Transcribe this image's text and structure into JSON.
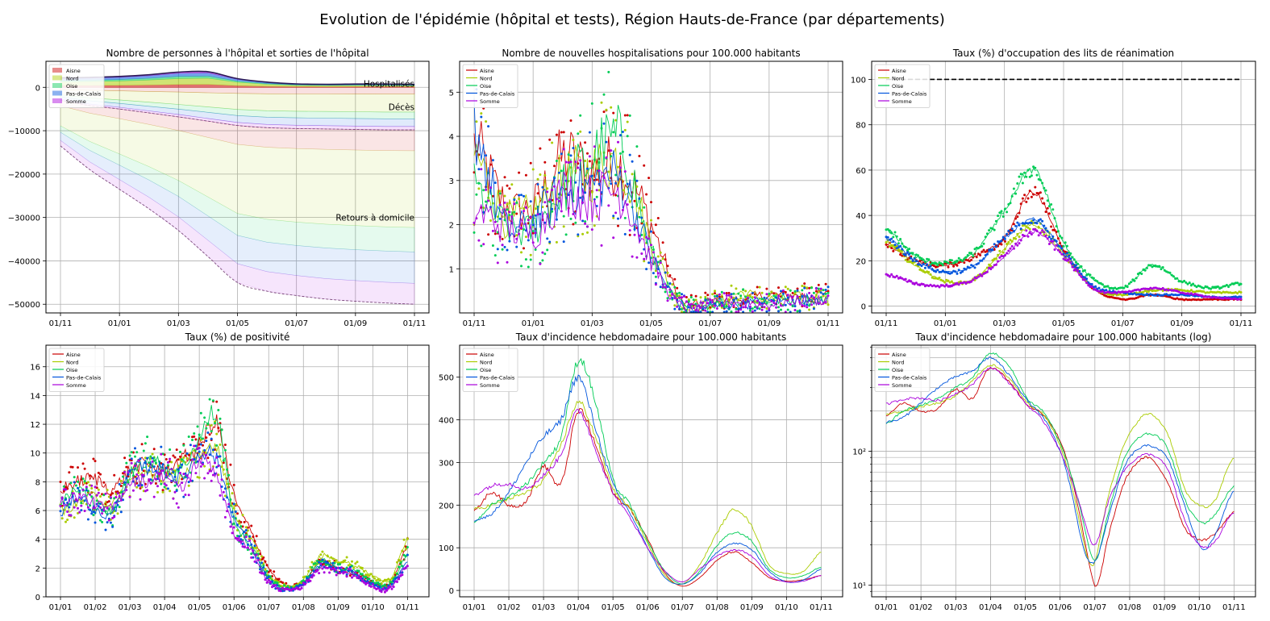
{
  "figure": {
    "title": "Evolution de l'épidémie (hôpital et tests), Région Hauts-de-France (par départements)"
  },
  "departments": [
    {
      "name": "Aisne",
      "color": "#cc0000"
    },
    {
      "name": "Nord",
      "color": "#aacc00"
    },
    {
      "name": "Oise",
      "color": "#00cc55"
    },
    {
      "name": "Pas-de-Calais",
      "color": "#0055dd"
    },
    {
      "name": "Somme",
      "color": "#aa00dd"
    }
  ],
  "chart_data": [
    {
      "id": "hosp",
      "type": "area",
      "title": "Nombre de personnes à l'hôpital et sorties de l'hôpital",
      "x_ticks": [
        "01/11",
        "01/01",
        "01/03",
        "01/05",
        "01/07",
        "01/09",
        "01/11"
      ],
      "x_range": [
        0,
        12
      ],
      "ylim": [
        -52000,
        6000
      ],
      "y_ticks": [
        0,
        -10000,
        -20000,
        -30000,
        -40000,
        -50000
      ],
      "y_tick_labels": [
        "0",
        "−10000",
        "−20000",
        "−30000",
        "−40000",
        "−50000"
      ],
      "legend": [
        "Aisne",
        "Nord",
        "Oise",
        "Pas-de-Calais",
        "Somme"
      ],
      "legend_position": "top-left",
      "grid": true,
      "annotations": [
        "Hospitalisés",
        "Décès",
        "Retours à domicile"
      ],
      "x": [
        0,
        1,
        2,
        3,
        4,
        5,
        6,
        7,
        8,
        9,
        10,
        11,
        12
      ],
      "hospitalises_total": [
        2200,
        2300,
        2500,
        2900,
        3500,
        3600,
        2000,
        1200,
        800,
        700,
        750,
        750,
        700
      ],
      "deces_total": [
        -3000,
        -4200,
        -5000,
        -5900,
        -6800,
        -7800,
        -8800,
        -9300,
        -9500,
        -9600,
        -9700,
        -9800,
        -9800
      ],
      "retours_total": [
        -13500,
        -19000,
        -23500,
        -28000,
        -33000,
        -39000,
        -45000,
        -47000,
        -48000,
        -48800,
        -49300,
        -49700,
        -50000
      ]
    },
    {
      "id": "new_hosp",
      "type": "line",
      "title": "Nombre de nouvelles hospitalisations pour 100.000 habitants",
      "x_ticks": [
        "01/11",
        "01/01",
        "01/03",
        "01/05",
        "01/07",
        "01/09",
        "01/11"
      ],
      "x_range": [
        0,
        12
      ],
      "ylim": [
        0,
        5.7
      ],
      "y_ticks": [
        1,
        2,
        3,
        4,
        5
      ],
      "y_tick_labels": [
        "1",
        "2",
        "3",
        "4",
        "5"
      ],
      "legend": [
        "Aisne",
        "Nord",
        "Oise",
        "Pas-de-Calais",
        "Somme"
      ],
      "legend_position": "top-left",
      "grid": true,
      "x": [
        0,
        1,
        2,
        3,
        4,
        5,
        6,
        7,
        8,
        9,
        10,
        11,
        12
      ],
      "series": [
        {
          "name": "Aisne",
          "values": [
            3.8,
            2.5,
            2.4,
            3.5,
            3.2,
            3.3,
            2.0,
            0.3,
            0.25,
            0.3,
            0.4,
            0.4,
            0.4
          ]
        },
        {
          "name": "Nord",
          "values": [
            3.6,
            2.2,
            2.3,
            3.0,
            3.2,
            3.4,
            1.6,
            0.2,
            0.2,
            0.45,
            0.3,
            0.35,
            0.3
          ]
        },
        {
          "name": "Oise",
          "values": [
            2.8,
            2.0,
            1.9,
            2.8,
            3.5,
            3.8,
            1.4,
            0.2,
            0.2,
            0.3,
            0.3,
            0.3,
            0.3
          ]
        },
        {
          "name": "Pas-de-Calais",
          "values": [
            4.3,
            2.0,
            2.1,
            2.7,
            2.9,
            3.0,
            1.3,
            0.2,
            0.15,
            0.2,
            0.25,
            0.3,
            0.35
          ]
        },
        {
          "name": "Somme",
          "values": [
            2.3,
            2.0,
            1.8,
            2.7,
            2.6,
            2.7,
            1.2,
            0.15,
            0.2,
            0.25,
            0.2,
            0.3,
            0.3
          ]
        }
      ]
    },
    {
      "id": "rea",
      "type": "line",
      "title": "Taux (%) d'occupation des lits de réanimation",
      "x_ticks": [
        "01/11",
        "01/01",
        "01/03",
        "01/05",
        "01/07",
        "01/09",
        "01/11"
      ],
      "x_range": [
        0,
        12
      ],
      "ylim": [
        -3,
        108
      ],
      "y_ticks": [
        0,
        20,
        40,
        60,
        80,
        100
      ],
      "y_tick_labels": [
        "0",
        "20",
        "40",
        "60",
        "80",
        "100"
      ],
      "legend": [
        "Aisne",
        "Nord",
        "Oise",
        "Pas-de-Calais",
        "Somme"
      ],
      "legend_position": "top-left",
      "grid": true,
      "reference_line": 100,
      "x": [
        0,
        1,
        2,
        3,
        4,
        5,
        6,
        7,
        8,
        9,
        10,
        11,
        12
      ],
      "series": [
        {
          "name": "Aisne",
          "values": [
            27,
            20,
            18,
            22,
            30,
            50,
            25,
            8,
            3,
            5,
            3,
            3,
            3
          ]
        },
        {
          "name": "Nord",
          "values": [
            28,
            18,
            11,
            12,
            25,
            36,
            23,
            8,
            5,
            7,
            7,
            6,
            6
          ]
        },
        {
          "name": "Oise",
          "values": [
            34,
            22,
            19,
            24,
            42,
            60,
            28,
            12,
            8,
            18,
            11,
            8,
            10
          ]
        },
        {
          "name": "Pas-de-Calais",
          "values": [
            30,
            20,
            15,
            18,
            30,
            38,
            24,
            9,
            6,
            5,
            5,
            4,
            4
          ]
        },
        {
          "name": "Somme",
          "values": [
            14,
            10,
            9,
            12,
            22,
            33,
            22,
            8,
            6,
            8,
            6,
            4,
            3
          ]
        }
      ]
    },
    {
      "id": "posit",
      "type": "line",
      "title": "Taux (%) de positivité",
      "x_ticks": [
        "01/01",
        "01/02",
        "01/03",
        "01/04",
        "01/05",
        "01/06",
        "01/07",
        "01/08",
        "01/09",
        "01/10",
        "01/11"
      ],
      "x_range": [
        0,
        10.2
      ],
      "ylim": [
        0,
        17.5
      ],
      "y_ticks": [
        0,
        2,
        4,
        6,
        8,
        10,
        12,
        14,
        16
      ],
      "y_tick_labels": [
        "0",
        "2",
        "4",
        "6",
        "8",
        "10",
        "12",
        "14",
        "16"
      ],
      "legend": [
        "Aisne",
        "Nord",
        "Oise",
        "Pas-de-Calais",
        "Somme"
      ],
      "legend_position": "top-left",
      "grid": true,
      "x": [
        0,
        0.5,
        1,
        1.5,
        2,
        2.5,
        3,
        3.5,
        4,
        4.5,
        5,
        5.5,
        6,
        6.5,
        7,
        7.5,
        8,
        8.5,
        9,
        9.5,
        10
      ],
      "series": [
        {
          "name": "Aisne",
          "values": [
            7.5,
            8.0,
            8.2,
            7.5,
            8.8,
            9.2,
            8.8,
            9.5,
            10.5,
            12.0,
            7.0,
            4.5,
            2.0,
            0.8,
            1.0,
            2.5,
            2.0,
            1.5,
            1.0,
            0.9,
            3.5
          ]
        },
        {
          "name": "Nord",
          "values": [
            6.0,
            6.5,
            7.0,
            6.5,
            8.0,
            8.5,
            8.2,
            8.5,
            9.5,
            10.5,
            6.0,
            4.0,
            1.5,
            0.7,
            1.2,
            2.8,
            2.5,
            2.2,
            1.5,
            1.2,
            4.0
          ]
        },
        {
          "name": "Oise",
          "values": [
            6.5,
            7.5,
            6.5,
            6.0,
            8.5,
            9.5,
            9.0,
            9.0,
            11.0,
            12.5,
            5.5,
            3.5,
            1.4,
            0.6,
            1.0,
            2.5,
            2.0,
            1.8,
            1.0,
            0.9,
            3.0
          ]
        },
        {
          "name": "Pas-de-Calais",
          "values": [
            5.8,
            7.0,
            6.0,
            5.8,
            8.5,
            9.0,
            8.8,
            8.2,
            10.0,
            9.5,
            5.5,
            3.5,
            1.2,
            0.5,
            0.9,
            2.2,
            2.0,
            1.6,
            0.8,
            0.7,
            2.5
          ]
        },
        {
          "name": "Somme",
          "values": [
            6.5,
            7.0,
            6.5,
            6.2,
            8.0,
            8.0,
            8.5,
            7.5,
            9.5,
            8.5,
            4.5,
            3.2,
            1.0,
            0.5,
            0.8,
            2.0,
            1.8,
            1.5,
            0.7,
            0.6,
            2.2
          ]
        }
      ]
    },
    {
      "id": "incid",
      "type": "line",
      "title": "Taux d'incidence hebdomadaire pour 100.000 habitants",
      "x_ticks": [
        "01/01",
        "01/02",
        "01/03",
        "01/04",
        "01/05",
        "01/06",
        "01/07",
        "01/08",
        "01/09",
        "01/10",
        "01/11"
      ],
      "x_range": [
        0,
        10.2
      ],
      "ylim": [
        -15,
        575
      ],
      "y_ticks": [
        0,
        100,
        200,
        300,
        400,
        500
      ],
      "y_tick_labels": [
        "0",
        "100",
        "200",
        "300",
        "400",
        "500"
      ],
      "legend": [
        "Aisne",
        "Nord",
        "Oise",
        "Pas-de-Calais",
        "Somme"
      ],
      "legend_position": "top-left",
      "grid": true,
      "x": [
        0,
        0.5,
        1,
        1.5,
        2,
        2.5,
        3,
        3.5,
        4,
        4.5,
        5,
        5.5,
        6,
        6.5,
        7,
        7.5,
        8,
        8.5,
        9,
        9.5,
        10
      ],
      "series": [
        {
          "name": "Aisne",
          "values": [
            185,
            230,
            200,
            210,
            290,
            250,
            420,
            340,
            230,
            190,
            120,
            40,
            10,
            30,
            70,
            90,
            65,
            30,
            22,
            25,
            35
          ]
        },
        {
          "name": "Nord",
          "values": [
            190,
            200,
            215,
            230,
            260,
            340,
            440,
            360,
            240,
            190,
            110,
            35,
            15,
            60,
            135,
            190,
            150,
            60,
            40,
            45,
            90
          ]
        },
        {
          "name": "Oise",
          "values": [
            160,
            200,
            220,
            250,
            300,
            360,
            540,
            440,
            260,
            200,
            115,
            45,
            15,
            45,
            105,
            135,
            115,
            50,
            30,
            35,
            55
          ]
        },
        {
          "name": "Pas-de-Calais",
          "values": [
            165,
            180,
            230,
            300,
            360,
            400,
            500,
            380,
            250,
            180,
            100,
            30,
            15,
            40,
            90,
            110,
            95,
            45,
            20,
            25,
            50
          ]
        },
        {
          "name": "Somme",
          "values": [
            225,
            245,
            250,
            240,
            270,
            320,
            420,
            330,
            230,
            170,
            100,
            45,
            20,
            50,
            80,
            95,
            80,
            35,
            20,
            22,
            35
          ]
        }
      ]
    },
    {
      "id": "incid_log",
      "type": "line",
      "title": "Taux d'incidence hebdomadaire pour 100.000 habitants (log)",
      "x_ticks": [
        "01/01",
        "01/02",
        "01/03",
        "01/04",
        "01/05",
        "01/06",
        "01/07",
        "01/08",
        "01/09",
        "01/10",
        "01/11"
      ],
      "x_range": [
        0,
        10.2
      ],
      "ylim": [
        8.2,
        620
      ],
      "y_scale": "log",
      "y_ticks": [
        10,
        100
      ],
      "y_tick_labels": [
        "10¹",
        "10²"
      ],
      "legend": [
        "Aisne",
        "Nord",
        "Oise",
        "Pas-de-Calais",
        "Somme"
      ],
      "legend_position": "top-left",
      "grid": true,
      "x": [
        0,
        0.5,
        1,
        1.5,
        2,
        2.5,
        3,
        3.5,
        4,
        4.5,
        5,
        5.5,
        6,
        6.5,
        7,
        7.5,
        8,
        8.5,
        9,
        9.5,
        10
      ],
      "series": [
        {
          "name": "Aisne",
          "values": [
            185,
            230,
            200,
            210,
            290,
            250,
            420,
            340,
            230,
            190,
            120,
            40,
            10,
            30,
            70,
            90,
            65,
            30,
            22,
            25,
            35
          ]
        },
        {
          "name": "Nord",
          "values": [
            190,
            200,
            215,
            230,
            260,
            340,
            440,
            360,
            240,
            190,
            110,
            35,
            15,
            60,
            135,
            190,
            150,
            60,
            40,
            45,
            90
          ]
        },
        {
          "name": "Oise",
          "values": [
            160,
            200,
            220,
            250,
            300,
            360,
            540,
            440,
            260,
            200,
            115,
            45,
            15,
            45,
            105,
            135,
            115,
            50,
            30,
            35,
            55
          ]
        },
        {
          "name": "Pas-de-Calais",
          "values": [
            165,
            180,
            230,
            300,
            360,
            400,
            500,
            380,
            250,
            180,
            100,
            30,
            15,
            40,
            90,
            110,
            95,
            45,
            20,
            25,
            50
          ]
        },
        {
          "name": "Somme",
          "values": [
            225,
            245,
            250,
            240,
            270,
            320,
            420,
            330,
            230,
            170,
            100,
            45,
            20,
            50,
            80,
            95,
            80,
            35,
            20,
            22,
            35
          ]
        }
      ]
    }
  ]
}
